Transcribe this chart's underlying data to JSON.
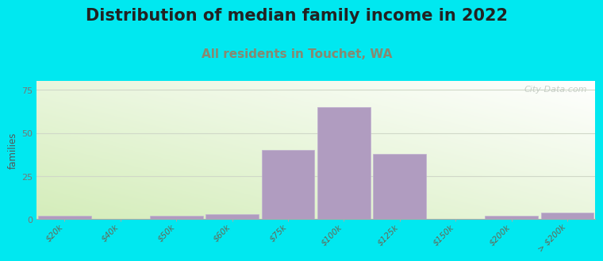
{
  "title": "Distribution of median family income in 2022",
  "subtitle": "All residents in Touchet, WA",
  "ylabel": "families",
  "bar_labels": [
    "$20k",
    "$40k",
    "$50k",
    "$60k",
    "$75k",
    "$100k",
    "$125k",
    "$150k",
    "$200k",
    "> $200k"
  ],
  "bar_values": [
    2,
    0,
    2,
    3,
    40,
    65,
    38,
    0,
    2,
    4
  ],
  "bar_color": "#b09cc0",
  "bar_edge_color": "#c0b0d0",
  "ylim": [
    0,
    80
  ],
  "yticks": [
    0,
    25,
    50,
    75
  ],
  "background_outer": "#00e8f0",
  "background_plot_topleft": "#e8f5e4",
  "background_plot_topright": "#f5f8f5",
  "background_plot_bottom": "#d0ecc4",
  "grid_color": "#d0d8c8",
  "title_fontsize": 15,
  "subtitle_fontsize": 11,
  "subtitle_color": "#888870",
  "watermark": "City-Data.com",
  "watermark_color": "#c0c8c0"
}
